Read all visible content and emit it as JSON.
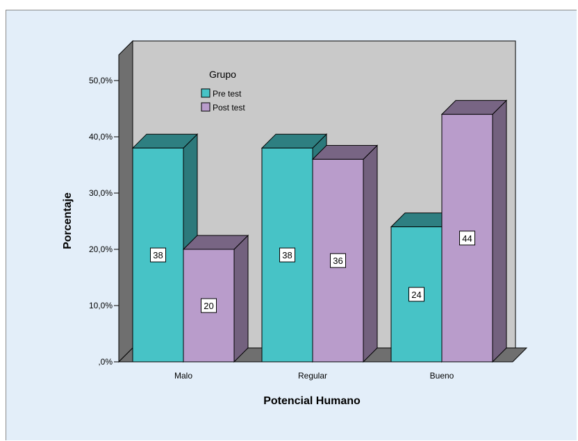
{
  "chart_data": {
    "type": "bar",
    "xlabel": "Potencial Humano",
    "ylabel": "Porcentaje",
    "categories": [
      "Malo",
      "Regular",
      "Bueno"
    ],
    "series": [
      {
        "name": "Pre test",
        "values": [
          38,
          38,
          24
        ],
        "labels": [
          "38",
          "38",
          "24"
        ],
        "color": "#47c3c6"
      },
      {
        "name": "Post test",
        "values": [
          20,
          36,
          44
        ],
        "labels": [
          "20",
          "36",
          "44"
        ],
        "color": "#b99ccb"
      }
    ],
    "ylim": [
      0,
      50
    ],
    "yticks": [
      ",0%",
      "10,0%",
      "20,0%",
      "30,0%",
      "40,0%",
      "50,0%"
    ],
    "legend": {
      "title": "Grupo",
      "position": "top-left"
    },
    "grid": false,
    "style": "3d"
  }
}
